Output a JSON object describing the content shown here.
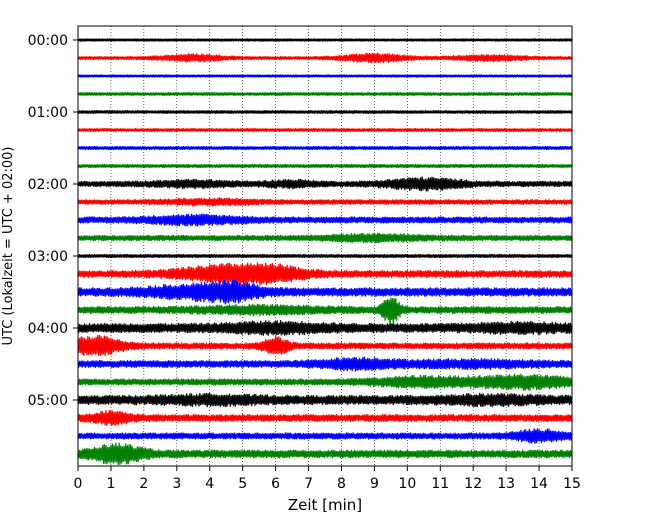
{
  "chart_data": {
    "type": "line",
    "xlabel": "Zeit  [min]",
    "ylabel": "UTC (Lokalzeit = UTC + 02:00)",
    "xlim": [
      0,
      15
    ],
    "x_ticks": [
      0,
      1,
      2,
      3,
      4,
      5,
      6,
      7,
      8,
      9,
      10,
      11,
      12,
      13,
      14,
      15
    ],
    "grid": {
      "vertical": true,
      "style": "dotted"
    },
    "row_duration_min": 15,
    "y_tick_labels": [
      "00:00",
      "01:00",
      "02:00",
      "03:00",
      "04:00",
      "05:00"
    ],
    "color_cycle": [
      "#000000",
      "#ff0000",
      "#0000ff",
      "#008000"
    ],
    "traces": [
      {
        "start": "00:00",
        "color": "#000000",
        "base": 0.15,
        "bursts": []
      },
      {
        "start": "00:15",
        "color": "#ff0000",
        "base": 0.18,
        "bursts": [
          [
            3.5,
            1.0,
            0.4
          ],
          [
            9,
            1.0,
            0.5
          ],
          [
            12.5,
            1.2,
            0.3
          ]
        ]
      },
      {
        "start": "00:30",
        "color": "#0000ff",
        "base": 0.14,
        "bursts": []
      },
      {
        "start": "00:45",
        "color": "#008000",
        "base": 0.18,
        "bursts": []
      },
      {
        "start": "01:00",
        "color": "#000000",
        "base": 0.18,
        "bursts": []
      },
      {
        "start": "01:15",
        "color": "#ff0000",
        "base": 0.18,
        "bursts": []
      },
      {
        "start": "01:30",
        "color": "#0000ff",
        "base": 0.2,
        "bursts": []
      },
      {
        "start": "01:45",
        "color": "#008000",
        "base": 0.2,
        "bursts": []
      },
      {
        "start": "02:00",
        "color": "#000000",
        "base": 0.35,
        "bursts": [
          [
            3.5,
            1.2,
            0.3
          ],
          [
            6.5,
            0.8,
            0.3
          ],
          [
            10.5,
            1.2,
            0.6
          ]
        ]
      },
      {
        "start": "02:15",
        "color": "#ff0000",
        "base": 0.3,
        "bursts": [
          [
            4,
            1.5,
            0.25
          ]
        ]
      },
      {
        "start": "02:30",
        "color": "#0000ff",
        "base": 0.4,
        "bursts": [
          [
            3.5,
            1.5,
            0.4
          ]
        ]
      },
      {
        "start": "02:45",
        "color": "#008000",
        "base": 0.35,
        "bursts": [
          [
            9,
            1.5,
            0.3
          ]
        ]
      },
      {
        "start": "03:00",
        "color": "#000000",
        "base": 0.2,
        "bursts": []
      },
      {
        "start": "03:15",
        "color": "#ff0000",
        "base": 0.45,
        "bursts": [
          [
            4.5,
            1.5,
            0.9
          ],
          [
            6,
            1.0,
            0.6
          ]
        ]
      },
      {
        "start": "03:30",
        "color": "#0000ff",
        "base": 0.55,
        "bursts": [
          [
            3.5,
            1.5,
            0.6
          ],
          [
            4.7,
            0.8,
            0.7
          ]
        ]
      },
      {
        "start": "03:45",
        "color": "#008000",
        "base": 0.45,
        "bursts": [
          [
            5.5,
            2.0,
            0.3
          ],
          [
            9.5,
            0.25,
            1.6
          ]
        ]
      },
      {
        "start": "04:00",
        "color": "#000000",
        "base": 0.6,
        "bursts": [
          [
            6,
            1.5,
            0.4
          ],
          [
            13.5,
            1.5,
            0.3
          ]
        ]
      },
      {
        "start": "04:15",
        "color": "#ff0000",
        "base": 0.4,
        "bursts": [
          [
            0.5,
            0.8,
            1.1
          ],
          [
            6,
            0.4,
            0.9
          ]
        ]
      },
      {
        "start": "04:30",
        "color": "#0000ff",
        "base": 0.45,
        "bursts": [
          [
            8.5,
            1.2,
            0.5
          ],
          [
            12,
            2.0,
            0.3
          ]
        ]
      },
      {
        "start": "04:45",
        "color": "#008000",
        "base": 0.4,
        "bursts": [
          [
            10.5,
            1.5,
            0.5
          ],
          [
            13.5,
            1.5,
            0.7
          ]
        ]
      },
      {
        "start": "05:00",
        "color": "#000000",
        "base": 0.6,
        "bursts": [
          [
            4,
            1.5,
            0.3
          ],
          [
            12.5,
            1.5,
            0.3
          ]
        ]
      },
      {
        "start": "05:15",
        "color": "#ff0000",
        "base": 0.45,
        "bursts": [
          [
            1,
            0.6,
            0.6
          ]
        ]
      },
      {
        "start": "05:30",
        "color": "#0000ff",
        "base": 0.4,
        "bursts": [
          [
            14,
            0.8,
            0.6
          ]
        ]
      },
      {
        "start": "05:45",
        "color": "#008000",
        "base": 0.5,
        "bursts": [
          [
            1.2,
            0.8,
            1.0
          ]
        ]
      }
    ]
  }
}
